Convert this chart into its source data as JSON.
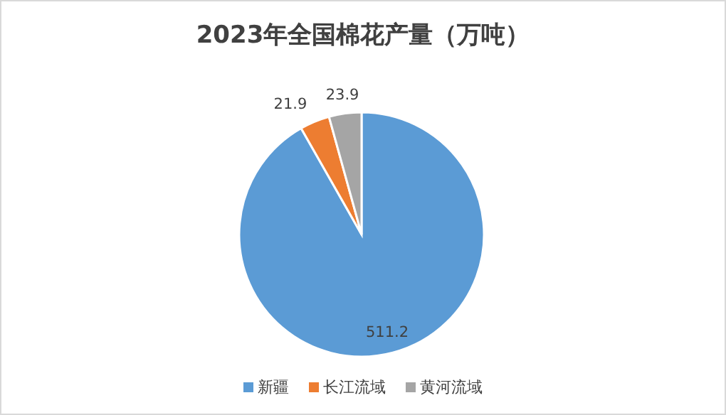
{
  "chart_data": {
    "type": "pie",
    "title": "2023年全国棉花产量（万吨）",
    "categories": [
      "新疆",
      "长江流域",
      "黄河流域"
    ],
    "values": [
      511.2,
      21.9,
      23.9
    ],
    "colors": [
      "#5b9bd5",
      "#ed7d31",
      "#a5a5a5"
    ],
    "data_labels": true,
    "legend": "bottom"
  }
}
